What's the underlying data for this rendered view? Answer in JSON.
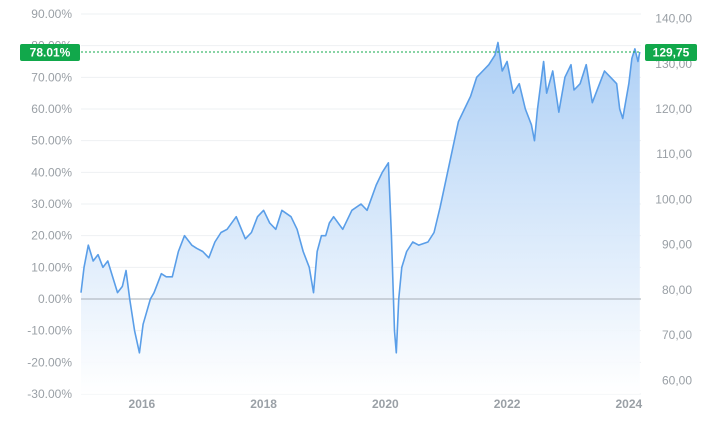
{
  "chart_data": {
    "type": "area",
    "title": "",
    "xlabel": "",
    "ylabel": "",
    "x_range": [
      2015.0,
      2024.2
    ],
    "x_ticks": [
      {
        "value": 2016,
        "label": "2016"
      },
      {
        "value": 2018,
        "label": "2018"
      },
      {
        "value": 2020,
        "label": "2020"
      },
      {
        "value": 2022,
        "label": "2022"
      },
      {
        "value": 2024,
        "label": "2024"
      }
    ],
    "y_left": {
      "range": [
        -0.3,
        0.9
      ],
      "ticks": [
        "-30.00%",
        "-20.00%",
        "-10.00%",
        "0.00%",
        "10.00%",
        "20.00%",
        "30.00%",
        "40.00%",
        "50.00%",
        "60.00%",
        "70.00%",
        "80.00%",
        "90.00%"
      ],
      "tick_values": [
        -0.3,
        -0.2,
        -0.1,
        0.0,
        0.1,
        0.2,
        0.3,
        0.4,
        0.5,
        0.6,
        0.7,
        0.8,
        0.9
      ]
    },
    "y_right": {
      "range": [
        57.0,
        141.0
      ],
      "ticks": [
        "60,00",
        "70,00",
        "80,00",
        "90,00",
        "100,00",
        "110,00",
        "120,00",
        "130,00",
        "140,00"
      ],
      "tick_values": [
        60,
        70,
        80,
        90,
        100,
        110,
        120,
        130,
        140
      ]
    },
    "grid": true,
    "baseline": 0.0,
    "current": {
      "left_label": "78.01%",
      "right_label": "129,75",
      "value": 0.7801
    },
    "colors": {
      "line": "#5a9ee8",
      "fill_top": "#a9cdf5",
      "fill_bottom": "#ffffff",
      "badge": "#11a84b",
      "grid": "#eef0f3",
      "baseline": "#a6adb5",
      "current_line": "#11a84b"
    },
    "series": [
      {
        "x": [
          2015.0,
          2015.05,
          2015.12,
          2015.2,
          2015.28,
          2015.36,
          2015.44,
          2015.52,
          2015.6,
          2015.68,
          2015.74,
          2015.8,
          2015.88,
          2015.96,
          2016.02,
          2016.08,
          2016.14,
          2016.2,
          2016.26,
          2016.32,
          2016.4,
          2016.5,
          2016.6,
          2016.7,
          2016.82,
          2016.9,
          2017.0,
          2017.1,
          2017.2,
          2017.3,
          2017.4,
          2017.55,
          2017.7,
          2017.8,
          2017.9,
          2018.0,
          2018.1,
          2018.2,
          2018.3,
          2018.45,
          2018.55,
          2018.65,
          2018.75,
          2018.82,
          2018.88,
          2018.95,
          2019.02,
          2019.08,
          2019.15,
          2019.3,
          2019.45,
          2019.6,
          2019.7,
          2019.85,
          2019.95,
          2020.05,
          2020.1,
          2020.15,
          2020.18,
          2020.22,
          2020.27,
          2020.35,
          2020.45,
          2020.55,
          2020.7,
          2020.8,
          2020.9,
          2021.0,
          2021.1,
          2021.2,
          2021.3,
          2021.4,
          2021.5,
          2021.6,
          2021.7,
          2021.8,
          2021.85,
          2021.92,
          2022.0,
          2022.05,
          2022.1,
          2022.2,
          2022.3,
          2022.4,
          2022.45,
          2022.5,
          2022.6,
          2022.65,
          2022.75,
          2022.85,
          2022.95,
          2023.05,
          2023.1,
          2023.2,
          2023.3,
          2023.4,
          2023.5,
          2023.6,
          2023.7,
          2023.8,
          2023.85,
          2023.9,
          2024.0,
          2024.05,
          2024.1,
          2024.15,
          2024.18
        ],
        "y": [
          0.02,
          0.1,
          0.17,
          0.12,
          0.14,
          0.1,
          0.12,
          0.07,
          0.02,
          0.04,
          0.09,
          0.0,
          -0.1,
          -0.17,
          -0.08,
          -0.04,
          0.0,
          0.02,
          0.05,
          0.08,
          0.07,
          0.07,
          0.15,
          0.2,
          0.17,
          0.16,
          0.15,
          0.13,
          0.18,
          0.21,
          0.22,
          0.26,
          0.19,
          0.21,
          0.26,
          0.28,
          0.24,
          0.22,
          0.28,
          0.26,
          0.22,
          0.15,
          0.1,
          0.02,
          0.15,
          0.2,
          0.2,
          0.24,
          0.26,
          0.22,
          0.28,
          0.3,
          0.28,
          0.36,
          0.4,
          0.43,
          0.2,
          -0.1,
          -0.17,
          0.0,
          0.1,
          0.15,
          0.18,
          0.17,
          0.18,
          0.21,
          0.29,
          0.38,
          0.47,
          0.56,
          0.6,
          0.64,
          0.7,
          0.72,
          0.74,
          0.77,
          0.81,
          0.72,
          0.75,
          0.7,
          0.65,
          0.68,
          0.6,
          0.55,
          0.5,
          0.6,
          0.75,
          0.65,
          0.72,
          0.59,
          0.7,
          0.74,
          0.66,
          0.68,
          0.74,
          0.62,
          0.67,
          0.72,
          0.7,
          0.68,
          0.6,
          0.57,
          0.68,
          0.76,
          0.79,
          0.75,
          0.78
        ]
      }
    ]
  }
}
